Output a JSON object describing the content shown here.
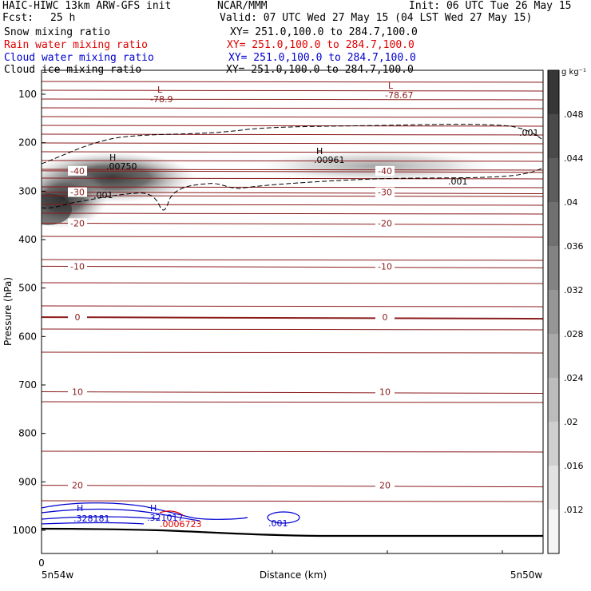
{
  "header": {
    "title": "HAIC-HIWC 13km ARW-GFS init",
    "institution": "NCAR/MMM",
    "init": "Init: 06 UTC Tue 26 May 15",
    "fcst_label": "Fcst:",
    "fcst_value": "25 h",
    "valid": "Valid: 07 UTC Wed 27 May 15 (04 LST Wed 27 May 15)"
  },
  "fields": [
    {
      "name": "Snow mixing ratio",
      "xy": "XY= 251.0,100.0 to 284.7,100.0",
      "color": "#000000"
    },
    {
      "name": "Rain water mixing ratio",
      "xy": "XY= 251.0,100.0 to 284.7,100.0",
      "color": "#e00000"
    },
    {
      "name": "Cloud water mixing ratio",
      "xy": "XY= 251.0,100.0 to 284.7,100.0",
      "color": "#0000d0"
    },
    {
      "name": "Cloud ice mixing ratio",
      "xy": "XY= 251.0,100.0 to 284.7,100.0",
      "color": "#000000"
    }
  ],
  "chart_data": {
    "type": "heatmap",
    "ylabel": "Pressure (hPa)",
    "xlabel": "Distance (km)",
    "y_ticks": [
      100,
      200,
      300,
      400,
      500,
      600,
      700,
      800,
      900,
      1000
    ],
    "ylim": [
      1050,
      60
    ],
    "x_start_label": "0",
    "x_left_endpoint": "5n54w",
    "x_right_endpoint": "5n50w",
    "colorbar": {
      "unit": "g kg⁻¹",
      "levels": [
        ".012",
        ".016",
        ".02",
        ".024",
        ".028",
        ".032",
        ".036",
        ".04",
        ".044",
        ".048"
      ]
    },
    "temperature_contour_color": "#8b1a1a",
    "temperature_contours": [
      {
        "label": "-40",
        "pressure": 258
      },
      {
        "label": "-30",
        "pressure": 302
      },
      {
        "label": "-20",
        "pressure": 366
      },
      {
        "label": "-10",
        "pressure": 455
      },
      {
        "label": "0",
        "pressure": 560
      },
      {
        "label": "10",
        "pressure": 714
      },
      {
        "label": "20",
        "pressure": 907
      }
    ],
    "extrema": [
      {
        "kind": "L",
        "value": "-78.9",
        "color": "#8b1a1a"
      },
      {
        "kind": "L",
        "value": "-78.67",
        "color": "#8b1a1a"
      },
      {
        "kind": "H",
        "value": ".00750",
        "color": "#000000"
      },
      {
        "kind": "H",
        "value": ".00961",
        "color": "#000000"
      },
      {
        "kind": "H",
        "value": ".328181",
        "color": "#0000d0"
      },
      {
        "kind": "H",
        "value": ".321017",
        "color": "#0000d0"
      },
      {
        "kind": "H",
        "value": ".0006723",
        "color": "#e00000"
      }
    ],
    "contour_value_labels": [
      ".001",
      ".001",
      ".001",
      ".001"
    ]
  }
}
